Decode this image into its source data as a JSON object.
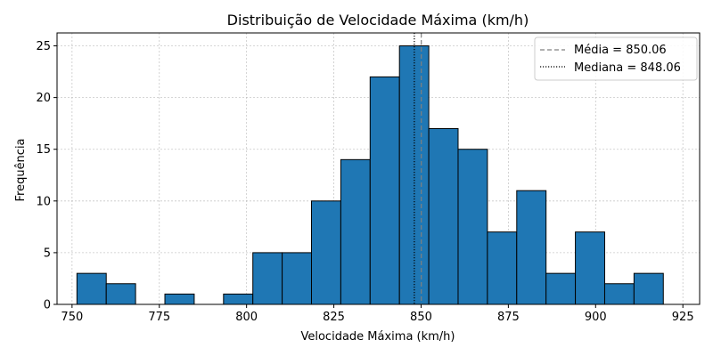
{
  "chart_data": {
    "type": "bar",
    "title": "Distribuição de Velocidade Máxima (km/h)",
    "xlabel": "Velocidade Máxima (km/h)",
    "ylabel": "Frequência",
    "xlim": [
      745.7,
      929.8
    ],
    "ylim": [
      0,
      26.25
    ],
    "xticks": [
      750,
      775,
      800,
      825,
      850,
      875,
      900,
      925
    ],
    "yticks": [
      0,
      5,
      10,
      15,
      20,
      25
    ],
    "grid": true,
    "bin_edges": [
      751.4,
      759.8,
      768.2,
      776.6,
      785.0,
      793.4,
      801.8,
      810.2,
      818.6,
      827.0,
      835.4,
      843.8,
      852.2,
      860.6,
      869.0,
      877.4,
      885.8,
      894.2,
      902.6,
      911.0,
      919.4
    ],
    "counts": [
      3,
      2,
      0,
      1,
      0,
      1,
      5,
      5,
      10,
      14,
      22,
      25,
      17,
      15,
      7,
      11,
      3,
      7,
      2,
      3
    ],
    "bar_color": "#1f77b4",
    "edge_color": "#000000",
    "reference_lines": [
      {
        "label": "Média = 850.06",
        "value": 850.06,
        "style": "dashed",
        "color": "#808080"
      },
      {
        "label": "Mediana = 848.06",
        "value": 848.06,
        "style": "dotted",
        "color": "#000000"
      }
    ],
    "legend_position": "top-right"
  }
}
